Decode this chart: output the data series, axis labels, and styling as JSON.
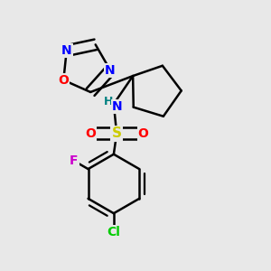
{
  "background_color": "#e8e8e8",
  "atom_colors": {
    "C": "#000000",
    "N": "#0000ff",
    "O": "#ff0000",
    "S": "#cccc00",
    "F": "#cc00cc",
    "Cl": "#00cc00",
    "H": "#008080"
  },
  "bond_color": "#000000",
  "bond_width": 1.8,
  "figsize": [
    3.0,
    3.0
  ],
  "dpi": 100
}
